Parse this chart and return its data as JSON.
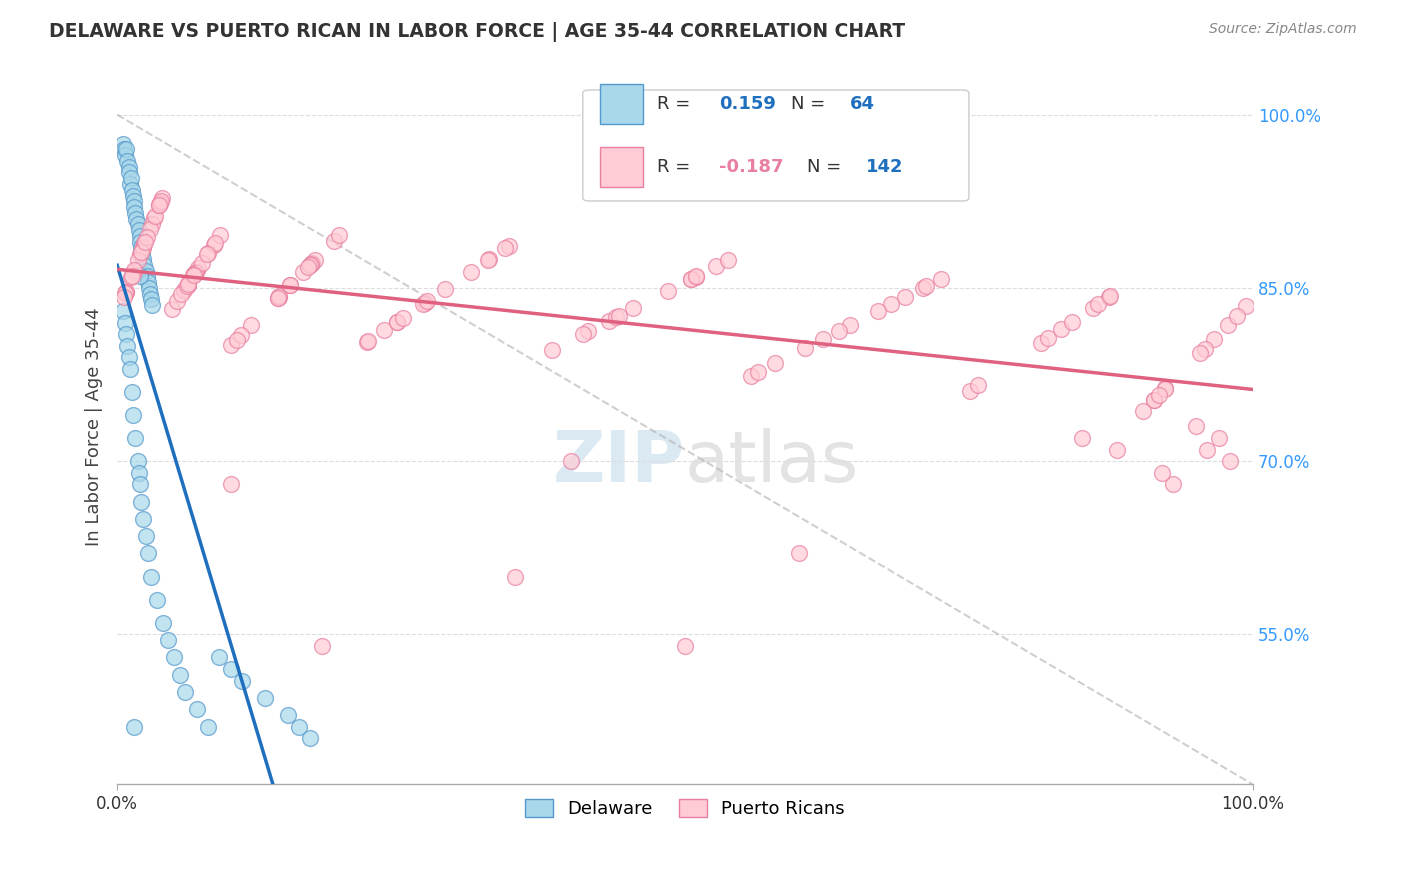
{
  "title": "DELAWARE VS PUERTO RICAN IN LABOR FORCE | AGE 35-44 CORRELATION CHART",
  "source": "Source: ZipAtlas.com",
  "ylabel": "In Labor Force | Age 35-44",
  "legend_label1": "Delaware",
  "legend_label2": "Puerto Ricans",
  "R1": 0.159,
  "N1": 64,
  "R2": -0.187,
  "N2": 142,
  "color_delaware_face": "#a8d8ea",
  "color_delaware_edge": "#5599cc",
  "color_puerto_face": "#ffccd5",
  "color_puerto_edge": "#e87fa0",
  "color_line_delaware": "#1f6fbf",
  "color_line_puerto": "#e06080",
  "color_ref_line": "#b0b0b0",
  "background_color": "#ffffff",
  "title_color": "#333333",
  "source_color": "#888888",
  "tick_color": "#3399ff",
  "grid_color": "#dddddd",
  "xlim": [
    0.0,
    1.0
  ],
  "ylim": [
    0.42,
    1.04
  ],
  "yticks": [
    0.55,
    0.7,
    0.85,
    1.0
  ],
  "ytick_labels": [
    "55.0%",
    "70.0%",
    "85.0%",
    "100.0%"
  ]
}
